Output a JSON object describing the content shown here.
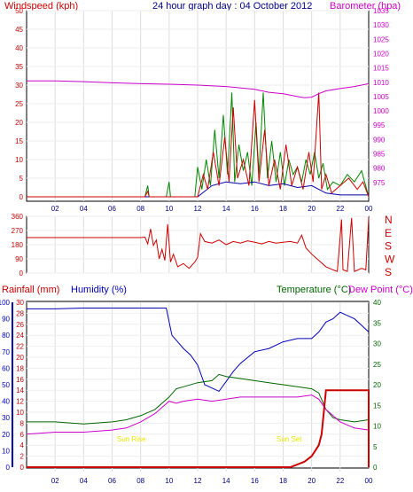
{
  "header": {
    "left_label": "Windspeed (kph)",
    "title": "24 hour graph day : 04 October 2012",
    "right_label": "Barometer (hpa)"
  },
  "colors": {
    "windspeed": "#cc0000",
    "gust": "#008800",
    "average": "#0000aa",
    "barometer": "#cc00cc",
    "direction": "#cc0000",
    "rainfall": "#cc0000",
    "humidity": "#0000bb",
    "temperature": "#006600",
    "dewpoint": "#cc00cc",
    "annotation": "#e8e800"
  },
  "x_ticks": [
    "02",
    "04",
    "06",
    "08",
    "10",
    "12",
    "14",
    "16",
    "18",
    "20",
    "22",
    "00"
  ],
  "chart_data": [
    {
      "type": "line",
      "name": "wind-barometer",
      "x_unit": "hour",
      "xlim": [
        0,
        24
      ],
      "left_axis": {
        "label": "Windspeed (kph)",
        "ylim": [
          0,
          50
        ],
        "ticks": [
          "0",
          "5",
          "10",
          "15",
          "20",
          "25",
          "30",
          "35",
          "40",
          "45",
          "50"
        ]
      },
      "right_axis": {
        "label": "Barometer (hpa)",
        "ylim": [
          970,
          1035
        ],
        "ticks": [
          "975",
          "980",
          "985",
          "990",
          "995",
          "1000",
          "1005",
          "1010",
          "1015",
          "1020",
          "1025",
          "1030",
          "1035"
        ]
      },
      "barometer": [
        [
          0,
          1010.5
        ],
        [
          2,
          1010.5
        ],
        [
          4,
          1010.2
        ],
        [
          6,
          1009.8
        ],
        [
          8,
          1009.5
        ],
        [
          10,
          1009.3
        ],
        [
          12,
          1009
        ],
        [
          14,
          1008.5
        ],
        [
          16,
          1007.5
        ],
        [
          17,
          1006.5
        ],
        [
          18,
          1006
        ],
        [
          19,
          1005
        ],
        [
          19.5,
          1004.6
        ],
        [
          20,
          1004.8
        ],
        [
          20.5,
          1006
        ],
        [
          21,
          1007
        ],
        [
          22,
          1007.8
        ],
        [
          23,
          1008.5
        ],
        [
          24,
          1009.5
        ]
      ],
      "wind_series": [
        {
          "name": "gust",
          "points": [
            [
              0,
              0
            ],
            [
              8.3,
              0
            ],
            [
              8.5,
              3
            ],
            [
              8.6,
              0
            ],
            [
              9.8,
              0
            ],
            [
              10,
              4
            ],
            [
              10.1,
              0
            ],
            [
              11.8,
              0
            ],
            [
              12,
              8
            ],
            [
              12.3,
              2
            ],
            [
              12.6,
              10
            ],
            [
              12.9,
              3
            ],
            [
              13.2,
              18
            ],
            [
              13.5,
              5
            ],
            [
              13.8,
              22
            ],
            [
              14.1,
              6
            ],
            [
              14.4,
              28
            ],
            [
              14.6,
              4
            ],
            [
              14.9,
              14
            ],
            [
              15.2,
              7
            ],
            [
              15.5,
              12
            ],
            [
              15.8,
              3
            ],
            [
              16.1,
              20
            ],
            [
              16.3,
              6
            ],
            [
              16.6,
              28
            ],
            [
              16.9,
              5
            ],
            [
              17.2,
              15
            ],
            [
              17.5,
              4
            ],
            [
              17.8,
              12
            ],
            [
              18.1,
              3
            ],
            [
              18.4,
              10
            ],
            [
              18.7,
              6
            ],
            [
              19,
              8
            ],
            [
              19.3,
              4
            ],
            [
              19.6,
              10
            ],
            [
              19.9,
              6
            ],
            [
              20.2,
              12
            ],
            [
              20.5,
              5
            ],
            [
              20.8,
              9
            ],
            [
              21.1,
              2
            ],
            [
              21.5,
              4
            ],
            [
              22,
              3
            ],
            [
              22.5,
              6
            ],
            [
              23,
              4
            ],
            [
              23.5,
              7
            ],
            [
              24,
              0
            ]
          ]
        },
        {
          "name": "average",
          "points": [
            [
              0,
              0
            ],
            [
              12,
              0
            ],
            [
              13,
              3
            ],
            [
              14,
              4
            ],
            [
              15,
              3.5
            ],
            [
              16,
              4
            ],
            [
              17,
              3
            ],
            [
              18,
              3.5
            ],
            [
              19,
              2.5
            ],
            [
              20,
              3
            ],
            [
              21,
              1
            ],
            [
              22,
              0.5
            ],
            [
              24,
              0.5
            ]
          ]
        },
        {
          "name": "windspeed",
          "points": [
            [
              0,
              0
            ],
            [
              8.3,
              0
            ],
            [
              8.5,
              1.5
            ],
            [
              8.6,
              0
            ],
            [
              12,
              0
            ],
            [
              12.4,
              6
            ],
            [
              12.7,
              2
            ],
            [
              13.1,
              12
            ],
            [
              13.5,
              3
            ],
            [
              13.9,
              16
            ],
            [
              14.2,
              4
            ],
            [
              14.5,
              24
            ],
            [
              14.8,
              5
            ],
            [
              15.2,
              10
            ],
            [
              15.6,
              3
            ],
            [
              16.0,
              26
            ],
            [
              16.3,
              4
            ],
            [
              16.7,
              18
            ],
            [
              17.0,
              3
            ],
            [
              17.4,
              10
            ],
            [
              17.8,
              2
            ],
            [
              18.2,
              14
            ],
            [
              18.6,
              3
            ],
            [
              19.0,
              8
            ],
            [
              19.4,
              2
            ],
            [
              19.8,
              12
            ],
            [
              20.1,
              4
            ],
            [
              20.5,
              28
            ],
            [
              20.7,
              2
            ],
            [
              21.0,
              6
            ],
            [
              21.4,
              1
            ],
            [
              22.0,
              3
            ],
            [
              22.6,
              5
            ],
            [
              23.2,
              2
            ],
            [
              23.6,
              4
            ],
            [
              24,
              0
            ]
          ]
        }
      ]
    },
    {
      "type": "line",
      "name": "wind-direction",
      "xlim": [
        0,
        24
      ],
      "left_axis": {
        "ylim": [
          0,
          360
        ],
        "ticks": [
          "0",
          "90",
          "180",
          "270",
          "360"
        ]
      },
      "right_axis": {
        "ticks": [
          "N",
          "E",
          "S",
          "W",
          "S"
        ]
      },
      "series": [
        {
          "name": "direction",
          "points": [
            [
              0,
              225
            ],
            [
              8,
              225
            ],
            [
              8.3,
              228
            ],
            [
              8.5,
              185
            ],
            [
              8.7,
              280
            ],
            [
              8.9,
              175
            ],
            [
              9.1,
              210
            ],
            [
              9.3,
              90
            ],
            [
              9.5,
              150
            ],
            [
              9.7,
              80
            ],
            [
              9.9,
              310
            ],
            [
              10.1,
              70
            ],
            [
              10.3,
              120
            ],
            [
              10.6,
              40
            ],
            [
              11,
              60
            ],
            [
              11.4,
              30
            ],
            [
              11.8,
              70
            ],
            [
              12,
              100
            ],
            [
              12.2,
              250
            ],
            [
              12.5,
              200
            ],
            [
              13,
              190
            ],
            [
              13.5,
              210
            ],
            [
              14,
              180
            ],
            [
              14.5,
              200
            ],
            [
              15,
              190
            ],
            [
              15.5,
              205
            ],
            [
              16,
              195
            ],
            [
              16.5,
              185
            ],
            [
              17,
              200
            ],
            [
              17.5,
              190
            ],
            [
              18,
              195
            ],
            [
              18.5,
              200
            ],
            [
              19,
              190
            ],
            [
              19.3,
              240
            ],
            [
              19.6,
              160
            ],
            [
              20,
              120
            ],
            [
              20.5,
              80
            ],
            [
              21,
              40
            ],
            [
              21.5,
              20
            ],
            [
              21.8,
              10
            ],
            [
              22.1,
              340
            ],
            [
              22.2,
              20
            ],
            [
              22.5,
              10
            ],
            [
              22.8,
              350
            ],
            [
              23.0,
              10
            ],
            [
              23.5,
              30
            ],
            [
              23.8,
              20
            ],
            [
              24,
              350
            ]
          ]
        }
      ]
    },
    {
      "type": "line",
      "name": "rain-humidity-temperature",
      "xlim": [
        0,
        24
      ],
      "labels": {
        "rainfall": "Rainfall (mm)",
        "humidity": "Humidity (%)",
        "temperature": "Temperature (°C)",
        "dewpoint": "Dew Point (°C)"
      },
      "annotations": [
        "Sun Rise",
        "Sun Set"
      ],
      "humidity_axis": {
        "ylim": [
          0,
          100
        ],
        "ticks": [
          "0",
          "10",
          "20",
          "30",
          "40",
          "50",
          "60",
          "70",
          "80",
          "90",
          "100"
        ]
      },
      "rain_axis": {
        "ylim": [
          0,
          30
        ],
        "ticks": [
          "0",
          "2",
          "4",
          "6",
          "8",
          "10",
          "12",
          "14",
          "16",
          "18",
          "20",
          "22",
          "24",
          "26",
          "28",
          "30"
        ]
      },
      "temp_axis": {
        "ylim": [
          0,
          40
        ],
        "ticks": [
          "0",
          "5",
          "10",
          "15",
          "20",
          "25",
          "30",
          "35",
          "40"
        ]
      },
      "humidity": [
        [
          0,
          96
        ],
        [
          2,
          96
        ],
        [
          4,
          96.5
        ],
        [
          6,
          96.5
        ],
        [
          8,
          96.5
        ],
        [
          9.8,
          96.5
        ],
        [
          10.2,
          80
        ],
        [
          10.6,
          76
        ],
        [
          11,
          72
        ],
        [
          11.5,
          68
        ],
        [
          12,
          62
        ],
        [
          12.5,
          50
        ],
        [
          13,
          48
        ],
        [
          13.5,
          46
        ],
        [
          14,
          52
        ],
        [
          14.5,
          58
        ],
        [
          15,
          63
        ],
        [
          16,
          70
        ],
        [
          17,
          72
        ],
        [
          18,
          76
        ],
        [
          19,
          78
        ],
        [
          20,
          78
        ],
        [
          20.5,
          82
        ],
        [
          21,
          88
        ],
        [
          21.5,
          90
        ],
        [
          22,
          94
        ],
        [
          22.5,
          92
        ],
        [
          23,
          90
        ],
        [
          23.5,
          86
        ],
        [
          24,
          82
        ]
      ],
      "temperature": [
        [
          0,
          11
        ],
        [
          2,
          11
        ],
        [
          4,
          10.5
        ],
        [
          6,
          11
        ],
        [
          7,
          11.5
        ],
        [
          8,
          12.5
        ],
        [
          9,
          14
        ],
        [
          10,
          17
        ],
        [
          10.5,
          19
        ],
        [
          11,
          19.5
        ],
        [
          12,
          20.5
        ],
        [
          13,
          21
        ],
        [
          13.5,
          22.5
        ],
        [
          14,
          22
        ],
        [
          15,
          21.5
        ],
        [
          16,
          21
        ],
        [
          17,
          20.5
        ],
        [
          18,
          20
        ],
        [
          19,
          19.5
        ],
        [
          20,
          19
        ],
        [
          20.5,
          18
        ],
        [
          21,
          14
        ],
        [
          21.5,
          12
        ],
        [
          22,
          11.5
        ],
        [
          23,
          11
        ],
        [
          24,
          11.5
        ]
      ],
      "dewpoint": [
        [
          0,
          8
        ],
        [
          2,
          8.5
        ],
        [
          4,
          8.5
        ],
        [
          6,
          9
        ],
        [
          7,
          9.5
        ],
        [
          8,
          11
        ],
        [
          9,
          13
        ],
        [
          10,
          16
        ],
        [
          10.5,
          15.5
        ],
        [
          11,
          16
        ],
        [
          12,
          16.5
        ],
        [
          13,
          16
        ],
        [
          14,
          16.5
        ],
        [
          15,
          17
        ],
        [
          16,
          17
        ],
        [
          17,
          17
        ],
        [
          18,
          17
        ],
        [
          19,
          17
        ],
        [
          20,
          17.5
        ],
        [
          20.5,
          16.5
        ],
        [
          21,
          14
        ],
        [
          22,
          11
        ],
        [
          23,
          9.5
        ],
        [
          24,
          9
        ]
      ],
      "rainfall": [
        [
          0,
          0
        ],
        [
          18.5,
          0
        ],
        [
          19,
          0.5
        ],
        [
          19.5,
          1
        ],
        [
          20,
          2
        ],
        [
          20.5,
          4
        ],
        [
          20.7,
          6
        ],
        [
          21,
          14
        ],
        [
          24,
          14
        ],
        [
          24,
          0
        ]
      ]
    }
  ]
}
